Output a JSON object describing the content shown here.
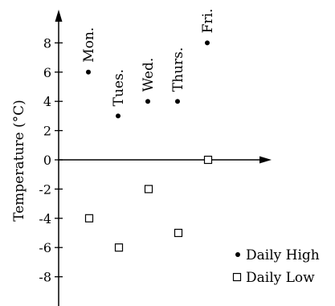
{
  "chart_data": {
    "type": "scatter",
    "title": "",
    "xlabel": "",
    "ylabel": "Temperature (°C)",
    "categories": [
      "Mon.",
      "Tues.",
      "Wed.",
      "Thurs.",
      "Fri."
    ],
    "ylim": [
      -10,
      10
    ],
    "yticks": [
      8,
      6,
      4,
      2,
      0,
      -2,
      -4,
      -6,
      -8
    ],
    "series": [
      {
        "name": "Daily High",
        "marker": "filled-circle",
        "values": [
          6,
          3,
          4,
          4,
          8
        ]
      },
      {
        "name": "Daily Low",
        "marker": "open-square",
        "values": [
          -4,
          -6,
          -2,
          -5,
          0
        ]
      }
    ],
    "legend": "bottom-right",
    "grid": false
  }
}
